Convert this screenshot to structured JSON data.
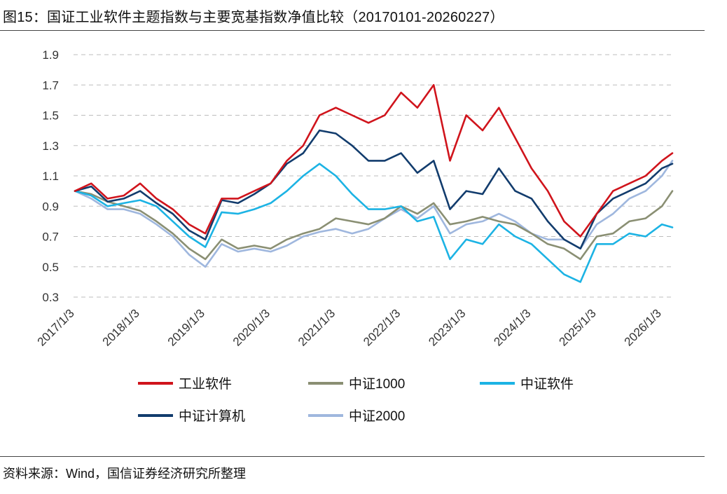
{
  "header": {
    "title": "图15：国证工业软件主题指数与主要宽基指数净值比较（20170101-20260227）"
  },
  "footer": {
    "source": "资料来源：Wind，国信证券经济研究所整理"
  },
  "chart_data": {
    "type": "line",
    "title": "图15：国证工业软件主题指数与主要宽基指数净值比较（20170101-20260227）",
    "xlabel": "",
    "ylabel": "",
    "ylim": [
      0.3,
      1.9
    ],
    "yticks": [
      "0.3",
      "0.5",
      "0.7",
      "0.9",
      "1.1",
      "1.3",
      "1.5",
      "1.7",
      "1.9"
    ],
    "x": [
      2017.0,
      2017.25,
      2017.5,
      2017.75,
      2018.0,
      2018.25,
      2018.5,
      2018.75,
      2019.0,
      2019.25,
      2019.5,
      2019.75,
      2020.0,
      2020.25,
      2020.5,
      2020.75,
      2021.0,
      2021.25,
      2021.5,
      2021.75,
      2022.0,
      2022.25,
      2022.5,
      2022.75,
      2023.0,
      2023.25,
      2023.5,
      2023.75,
      2024.0,
      2024.25,
      2024.5,
      2024.75,
      2025.0,
      2025.25,
      2025.5,
      2025.75,
      2026.0,
      2026.16
    ],
    "xticks": [
      {
        "value": 2017.0,
        "label": "2017/1/3"
      },
      {
        "value": 2018.0,
        "label": "2018/1/3"
      },
      {
        "value": 2019.0,
        "label": "2019/1/3"
      },
      {
        "value": 2020.0,
        "label": "2020/1/3"
      },
      {
        "value": 2021.0,
        "label": "2021/1/3"
      },
      {
        "value": 2022.0,
        "label": "2022/1/3"
      },
      {
        "value": 2023.0,
        "label": "2023/1/3"
      },
      {
        "value": 2024.0,
        "label": "2024/1/3"
      },
      {
        "value": 2025.0,
        "label": "2025/1/3"
      },
      {
        "value": 2026.0,
        "label": "2026/1/3"
      }
    ],
    "series": [
      {
        "name": "工业软件",
        "color": "#d0141c",
        "values": [
          1.0,
          1.05,
          0.95,
          0.97,
          1.05,
          0.95,
          0.88,
          0.78,
          0.72,
          0.95,
          0.95,
          1.0,
          1.05,
          1.2,
          1.3,
          1.5,
          1.55,
          1.5,
          1.45,
          1.5,
          1.65,
          1.55,
          1.7,
          1.2,
          1.5,
          1.4,
          1.55,
          1.35,
          1.15,
          1.0,
          0.8,
          0.7,
          0.85,
          1.0,
          1.05,
          1.1,
          1.2,
          1.25
        ]
      },
      {
        "name": "中证1000",
        "color": "#8a8f73",
        "values": [
          1.0,
          0.98,
          0.93,
          0.9,
          0.87,
          0.8,
          0.72,
          0.62,
          0.55,
          0.68,
          0.62,
          0.64,
          0.62,
          0.68,
          0.72,
          0.75,
          0.82,
          0.8,
          0.78,
          0.82,
          0.9,
          0.85,
          0.92,
          0.78,
          0.8,
          0.83,
          0.8,
          0.78,
          0.72,
          0.65,
          0.62,
          0.55,
          0.7,
          0.72,
          0.8,
          0.82,
          0.9,
          1.0
        ]
      },
      {
        "name": "中证软件",
        "color": "#1cb3e4",
        "values": [
          1.0,
          0.97,
          0.9,
          0.92,
          0.94,
          0.9,
          0.8,
          0.7,
          0.63,
          0.86,
          0.85,
          0.88,
          0.92,
          1.0,
          1.1,
          1.18,
          1.1,
          0.98,
          0.88,
          0.88,
          0.9,
          0.8,
          0.83,
          0.55,
          0.68,
          0.65,
          0.78,
          0.7,
          0.65,
          0.55,
          0.45,
          0.4,
          0.65,
          0.65,
          0.72,
          0.7,
          0.78,
          0.76
        ]
      },
      {
        "name": "中证计算机",
        "color": "#123c6d",
        "values": [
          1.0,
          1.03,
          0.93,
          0.95,
          1.0,
          0.92,
          0.85,
          0.74,
          0.68,
          0.94,
          0.92,
          0.98,
          1.05,
          1.18,
          1.25,
          1.4,
          1.38,
          1.3,
          1.2,
          1.2,
          1.25,
          1.12,
          1.2,
          0.88,
          1.0,
          0.98,
          1.15,
          1.0,
          0.95,
          0.8,
          0.68,
          0.62,
          0.85,
          0.95,
          1.0,
          1.05,
          1.15,
          1.18
        ]
      },
      {
        "name": "中证2000",
        "color": "#9fb7de",
        "values": [
          1.0,
          0.95,
          0.88,
          0.88,
          0.85,
          0.78,
          0.7,
          0.58,
          0.5,
          0.65,
          0.6,
          0.62,
          0.6,
          0.64,
          0.7,
          0.73,
          0.75,
          0.72,
          0.75,
          0.82,
          0.88,
          0.82,
          0.9,
          0.72,
          0.78,
          0.8,
          0.85,
          0.8,
          0.72,
          0.68,
          0.68,
          0.62,
          0.78,
          0.85,
          0.95,
          1.0,
          1.1,
          1.2
        ]
      }
    ],
    "legend": [
      "工业软件",
      "中证1000",
      "中证软件",
      "中证计算机",
      "中证2000"
    ]
  }
}
